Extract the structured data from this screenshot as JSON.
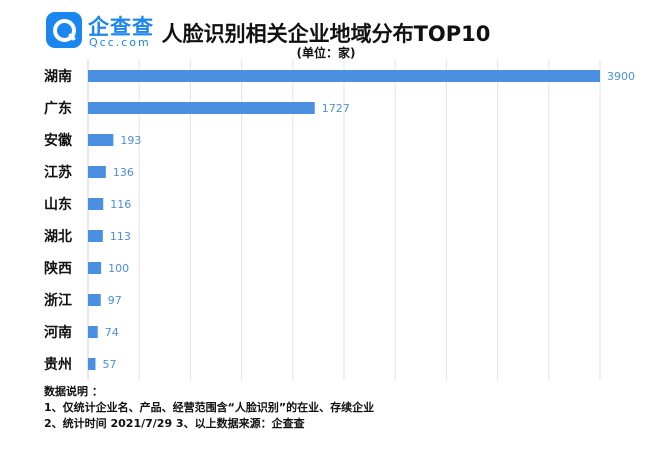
{
  "brand": {
    "name": "企查查",
    "domain": "Qcc.com",
    "color": "#1a86f0"
  },
  "chart_data": {
    "type": "bar",
    "orientation": "horizontal",
    "title": "人脸识别相关企业地域分布TOP10",
    "subtitle": "(单位：家)",
    "categories": [
      "湖南",
      "广东",
      "安徽",
      "江苏",
      "山东",
      "湖北",
      "陕西",
      "浙江",
      "河南",
      "贵州"
    ],
    "values": [
      3900,
      1727,
      193,
      136,
      116,
      113,
      100,
      97,
      74,
      57
    ],
    "xlim": [
      0,
      3900
    ],
    "grid": true,
    "bar_color": "#4a8fe0",
    "label_color": "#4a8fe0"
  },
  "notes": {
    "heading": "数据说明 ：",
    "line1": "1、仅统计企业名、产品、经营范围含“人脸识别”的在业、存续企业",
    "line2": "2、统计时间  2021/7/29      3、以上数据来源：企查查"
  }
}
